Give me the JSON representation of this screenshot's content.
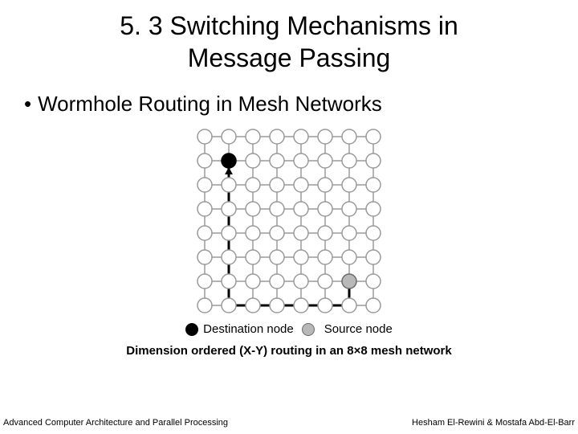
{
  "title_line1": "5. 3 Switching Mechanisms in",
  "title_line2": "Message Passing",
  "bullet": "Wormhole Routing in Mesh Networks",
  "mesh": {
    "type": "network",
    "rows": 8,
    "cols": 8,
    "cell_spacing": 30,
    "node_radius": 9,
    "node_fill": "#ffffff",
    "node_stroke": "#9a9a9a",
    "node_stroke_width": 1.5,
    "edge_color": "#9a9a9a",
    "edge_width": 1.5,
    "background_color": "#ffffff",
    "destination": {
      "row": 1,
      "col": 1,
      "fill": "#000000",
      "stroke": "#000000"
    },
    "source": {
      "row": 6,
      "col": 6,
      "fill": "#b8b8b8",
      "stroke": "#6a6a6a"
    },
    "route": {
      "color": "#000000",
      "width": 3,
      "arrow_size": 9,
      "points": [
        {
          "row": 6,
          "col": 6
        },
        {
          "row": 7,
          "col": 6
        },
        {
          "row": 7,
          "col": 1
        },
        {
          "row": 1,
          "col": 1
        }
      ]
    }
  },
  "legend": {
    "dest_label": "Destination node",
    "dest_fill": "#000000",
    "dest_stroke": "#000000",
    "src_label": "Source node",
    "src_fill": "#b8b8b8",
    "src_stroke": "#6a6a6a"
  },
  "caption": "Dimension ordered (X-Y) routing in an 8×8 mesh network",
  "footer_left": "Advanced Computer Architecture and Parallel Processing",
  "footer_right": "Hesham El-Rewini & Mostafa Abd-El-Barr"
}
